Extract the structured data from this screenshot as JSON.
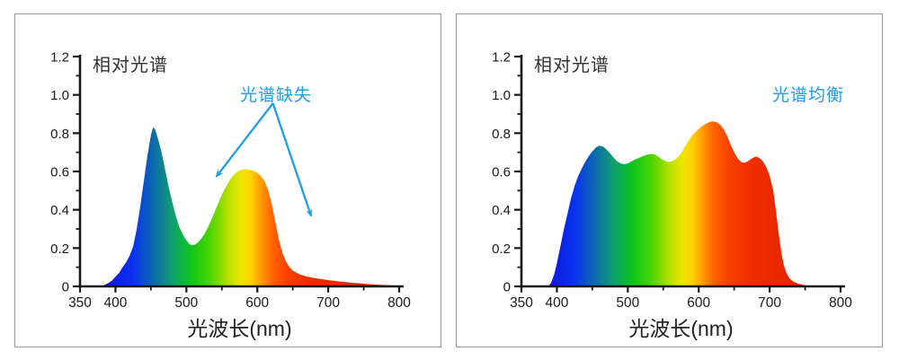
{
  "page": {
    "background": "#ffffff",
    "panel_border": "#97979a",
    "annotation_blue": "#1d9fe8",
    "axis_color": "#1a1a1a"
  },
  "spectrum_gradient": [
    {
      "nm": 380,
      "color": "#1c09c6"
    },
    {
      "nm": 400,
      "color": "#0d1ee6"
    },
    {
      "nm": 425,
      "color": "#0833ee"
    },
    {
      "nm": 478,
      "color": "#0f9b74"
    },
    {
      "nm": 505,
      "color": "#0cc41e"
    },
    {
      "nm": 532,
      "color": "#46d400"
    },
    {
      "nm": 558,
      "color": "#b2e000"
    },
    {
      "nm": 577,
      "color": "#eee600"
    },
    {
      "nm": 591,
      "color": "#ffd000"
    },
    {
      "nm": 606,
      "color": "#ff9800"
    },
    {
      "nm": 621,
      "color": "#ff6300"
    },
    {
      "nm": 642,
      "color": "#f94100"
    },
    {
      "nm": 668,
      "color": "#f13000"
    },
    {
      "nm": 710,
      "color": "#ea2800"
    },
    {
      "nm": 800,
      "color": "#e12000"
    }
  ],
  "chart_data": [
    {
      "type": "area",
      "title": "相对光谱",
      "xlabel": "光波长(nm)",
      "annotation": {
        "text": "光谱缺失",
        "color": "#1d9fe8",
        "arrows": [
          {
            "from_nm": 622,
            "from_i": 0.956,
            "to_nm": 542,
            "to_i": 0.572
          },
          {
            "from_nm": 622,
            "from_i": 0.956,
            "to_nm": 676,
            "to_i": 0.366
          }
        ]
      },
      "axes": {
        "x_range": [
          350,
          800
        ],
        "y_range": [
          0,
          1.2
        ],
        "x_major": [
          350,
          400,
          500,
          600,
          700,
          800
        ],
        "x_minor": [
          450,
          550,
          650,
          750
        ],
        "x_labels": [
          "350",
          "400",
          "500",
          "600",
          "700",
          "800"
        ],
        "y_major": [
          0,
          0.2,
          0.4,
          0.6,
          0.8,
          1.0,
          1.2
        ],
        "y_minor": [
          0.1,
          0.3,
          0.5,
          0.7,
          0.9,
          1.1
        ],
        "y_labels": [
          "0",
          "0.2",
          "0.4",
          "0.6",
          "0.8",
          "1.0",
          "1.2"
        ],
        "grid": false
      },
      "points": [
        [
          380,
          0
        ],
        [
          385,
          0.008
        ],
        [
          390,
          0.018
        ],
        [
          395,
          0.03
        ],
        [
          400,
          0.05
        ],
        [
          405,
          0.07
        ],
        [
          410,
          0.1
        ],
        [
          415,
          0.125
        ],
        [
          420,
          0.16
        ],
        [
          425,
          0.21
        ],
        [
          430,
          0.3
        ],
        [
          435,
          0.42
        ],
        [
          440,
          0.55
        ],
        [
          445,
          0.68
        ],
        [
          450,
          0.79
        ],
        [
          453,
          0.83
        ],
        [
          456,
          0.82
        ],
        [
          460,
          0.77
        ],
        [
          465,
          0.7
        ],
        [
          470,
          0.61
        ],
        [
          475,
          0.52
        ],
        [
          480,
          0.44
        ],
        [
          485,
          0.37
        ],
        [
          490,
          0.31
        ],
        [
          495,
          0.27
        ],
        [
          500,
          0.24
        ],
        [
          505,
          0.218
        ],
        [
          510,
          0.215
        ],
        [
          515,
          0.225
        ],
        [
          520,
          0.245
        ],
        [
          525,
          0.27
        ],
        [
          530,
          0.305
        ],
        [
          535,
          0.345
        ],
        [
          540,
          0.39
        ],
        [
          545,
          0.435
        ],
        [
          550,
          0.478
        ],
        [
          555,
          0.515
        ],
        [
          560,
          0.548
        ],
        [
          565,
          0.575
        ],
        [
          570,
          0.594
        ],
        [
          575,
          0.605
        ],
        [
          582,
          0.612
        ],
        [
          588,
          0.61
        ],
        [
          595,
          0.603
        ],
        [
          600,
          0.592
        ],
        [
          605,
          0.576
        ],
        [
          610,
          0.55
        ],
        [
          615,
          0.505
        ],
        [
          620,
          0.435
        ],
        [
          625,
          0.345
        ],
        [
          630,
          0.25
        ],
        [
          635,
          0.18
        ],
        [
          640,
          0.132
        ],
        [
          645,
          0.102
        ],
        [
          650,
          0.082
        ],
        [
          660,
          0.062
        ],
        [
          670,
          0.051
        ],
        [
          680,
          0.044
        ],
        [
          690,
          0.038
        ],
        [
          700,
          0.033
        ],
        [
          710,
          0.028
        ],
        [
          720,
          0.024
        ],
        [
          730,
          0.02
        ],
        [
          740,
          0.017
        ],
        [
          750,
          0.014
        ],
        [
          760,
          0.011
        ],
        [
          770,
          0.009
        ],
        [
          780,
          0.007
        ],
        [
          790,
          0.005
        ],
        [
          800,
          0.004
        ]
      ]
    },
    {
      "type": "area",
      "title": "相对光谱",
      "xlabel": "光波长(nm)",
      "annotation": {
        "text": "光谱均衡",
        "color": "#1d9fe8",
        "arrows": []
      },
      "axes": {
        "x_range": [
          350,
          800
        ],
        "y_range": [
          0,
          1.2
        ],
        "x_major": [
          350,
          400,
          500,
          600,
          700,
          800
        ],
        "x_minor": [
          450,
          550,
          650,
          750
        ],
        "x_labels": [
          "350",
          "400",
          "500",
          "600",
          "700",
          "800"
        ],
        "y_major": [
          0,
          0.2,
          0.4,
          0.6,
          0.8,
          1.0,
          1.2
        ],
        "y_minor": [
          0.1,
          0.3,
          0.5,
          0.7,
          0.9,
          1.1
        ],
        "y_labels": [
          "0",
          "0.2",
          "0.4",
          "0.6",
          "0.8",
          "1.0",
          "1.2"
        ],
        "grid": false
      },
      "points": [
        [
          388,
          0
        ],
        [
          392,
          0.02
        ],
        [
          396,
          0.06
        ],
        [
          400,
          0.12
        ],
        [
          405,
          0.21
        ],
        [
          410,
          0.3
        ],
        [
          415,
          0.38
        ],
        [
          420,
          0.46
        ],
        [
          425,
          0.525
        ],
        [
          430,
          0.575
        ],
        [
          435,
          0.615
        ],
        [
          440,
          0.65
        ],
        [
          445,
          0.68
        ],
        [
          450,
          0.705
        ],
        [
          455,
          0.725
        ],
        [
          460,
          0.735
        ],
        [
          465,
          0.73
        ],
        [
          470,
          0.715
        ],
        [
          475,
          0.695
        ],
        [
          480,
          0.672
        ],
        [
          485,
          0.653
        ],
        [
          490,
          0.642
        ],
        [
          495,
          0.638
        ],
        [
          500,
          0.642
        ],
        [
          505,
          0.652
        ],
        [
          510,
          0.662
        ],
        [
          515,
          0.67
        ],
        [
          520,
          0.678
        ],
        [
          525,
          0.685
        ],
        [
          530,
          0.69
        ],
        [
          535,
          0.692
        ],
        [
          540,
          0.685
        ],
        [
          545,
          0.672
        ],
        [
          550,
          0.66
        ],
        [
          555,
          0.651
        ],
        [
          560,
          0.65
        ],
        [
          565,
          0.658
        ],
        [
          570,
          0.672
        ],
        [
          575,
          0.695
        ],
        [
          580,
          0.725
        ],
        [
          585,
          0.755
        ],
        [
          590,
          0.785
        ],
        [
          595,
          0.805
        ],
        [
          600,
          0.822
        ],
        [
          605,
          0.838
        ],
        [
          610,
          0.85
        ],
        [
          615,
          0.858
        ],
        [
          620,
          0.862
        ],
        [
          625,
          0.858
        ],
        [
          630,
          0.845
        ],
        [
          635,
          0.822
        ],
        [
          640,
          0.785
        ],
        [
          645,
          0.74
        ],
        [
          650,
          0.7
        ],
        [
          655,
          0.668
        ],
        [
          660,
          0.648
        ],
        [
          665,
          0.645
        ],
        [
          670,
          0.655
        ],
        [
          675,
          0.668
        ],
        [
          680,
          0.678
        ],
        [
          685,
          0.672
        ],
        [
          690,
          0.655
        ],
        [
          695,
          0.625
        ],
        [
          700,
          0.578
        ],
        [
          705,
          0.5
        ],
        [
          708,
          0.42
        ],
        [
          711,
          0.33
        ],
        [
          714,
          0.24
        ],
        [
          717,
          0.165
        ],
        [
          720,
          0.11
        ],
        [
          724,
          0.068
        ],
        [
          728,
          0.042
        ],
        [
          733,
          0.026
        ],
        [
          740,
          0.014
        ],
        [
          748,
          0.007
        ],
        [
          756,
          0.003
        ],
        [
          765,
          0.001
        ],
        [
          780,
          0
        ]
      ]
    }
  ]
}
